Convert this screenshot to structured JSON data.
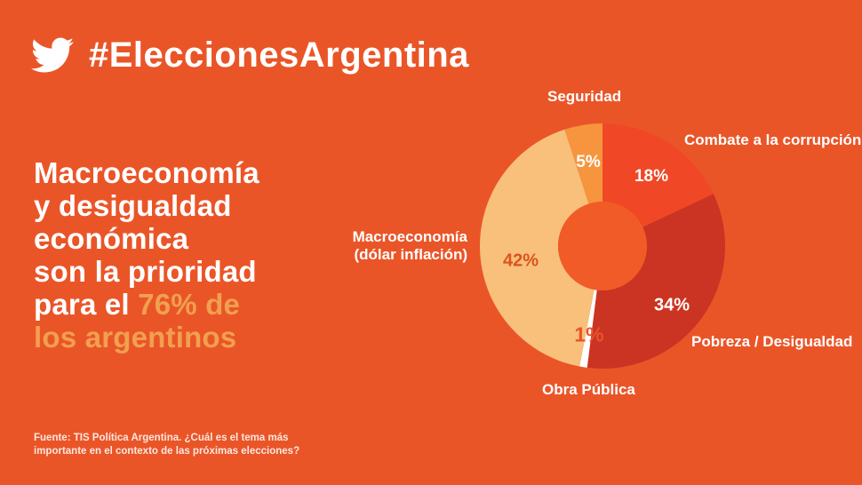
{
  "page": {
    "background_color": "#EA5528"
  },
  "header": {
    "icon": "twitter-bird-icon",
    "hashtag": "#EleccionesArgentina"
  },
  "headline": {
    "white_part": "Macroeconomía\ny desigualdad\neconómica\nson la prioridad\npara el ",
    "accent_part": "76% de\nlos argentinos",
    "accent_color": "#F1A04F",
    "highlight_value": "76%"
  },
  "footer": {
    "source": "Fuente: TIS Política Argentina. ¿Cuál es el tema más\nimportante en el contexto de las próximas elecciones?"
  },
  "chart_data": {
    "type": "pie",
    "subtype": "donut",
    "direction": "clockwise",
    "start_angle_deg": 0,
    "hole_color": "#F15B27",
    "categories": [
      "Combate a la corrupción",
      "Pobreza / Desigualdad",
      "Obra Pública",
      "Macroeconomía (dólar inflación)",
      "Seguridad"
    ],
    "values": [
      18,
      34,
      1,
      42,
      5
    ],
    "slices": [
      {
        "label": "Combate a la corrupción",
        "value": 18,
        "pct_label": "18%",
        "color": "#F04826"
      },
      {
        "label": "Pobreza / Desigualdad",
        "value": 34,
        "pct_label": "34%",
        "color": "#CB3422"
      },
      {
        "label": "Obra Pública",
        "value": 1,
        "pct_label": "1%",
        "color": "#FFFFFF"
      },
      {
        "label": "Macroeconomía\n(dólar inflación)",
        "value": 42,
        "pct_label": "42%",
        "color": "#F8C07B"
      },
      {
        "label": "Seguridad",
        "value": 5,
        "pct_label": "5%",
        "color": "#F6953D"
      }
    ]
  }
}
